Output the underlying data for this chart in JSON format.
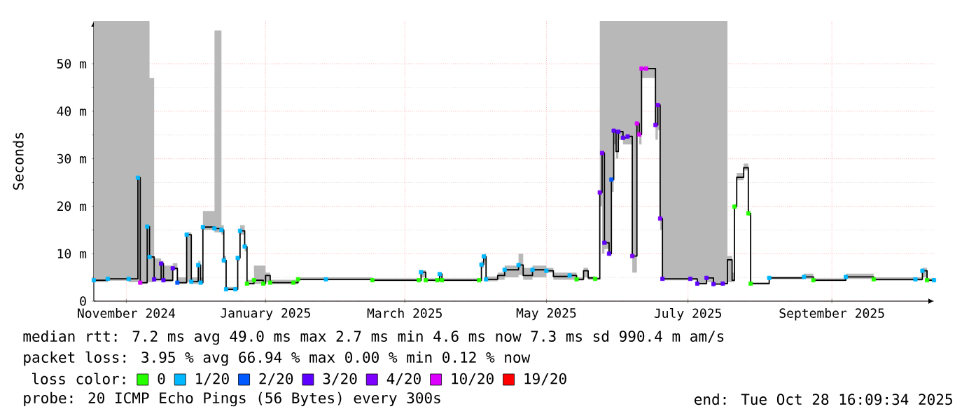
{
  "chart_data": {
    "type": "step",
    "ylabel": "Seconds",
    "legend_title": "loss color:",
    "legend": "bottom",
    "grid": true,
    "xlim": [
      "2024-10-31",
      "2025-10-28"
    ],
    "xticks": [
      {
        "value": "2024-11-14",
        "label": "November 2024"
      },
      {
        "value": "2025-01-13",
        "label": "January 2025"
      },
      {
        "value": "2025-03-14",
        "label": "March 2025"
      },
      {
        "value": "2025-05-14",
        "label": "May 2025"
      },
      {
        "value": "2025-07-14",
        "label": "July 2025"
      },
      {
        "value": "2025-09-14",
        "label": "September 2025"
      }
    ],
    "ylim": [
      0,
      59
    ],
    "yticks": [
      0,
      {
        "value": 10,
        "label": "10 m"
      },
      {
        "value": 20,
        "label": "20 m"
      },
      {
        "value": 30,
        "label": "30 m"
      },
      {
        "value": 40,
        "label": "40 m"
      },
      {
        "value": 50,
        "label": "50 m"
      }
    ],
    "annotations": [
      "median rtt:  7.2 ms avg  49.0 ms max  2.7 ms min  4.6 ms now  7.3 ms sd  990.4 m am/s",
      "packet loss: 3.95 % avg  66.94 % max  0.00 % min  0.12 % now",
      "probe:       20 ICMP Echo Pings (56 Bytes) every 300s",
      "end: Tue Oct 28 16:09:34 2025"
    ],
    "series": [
      {
        "color": "#000000",
        "x": [
          "2024-10-31",
          "2024-11-06",
          "2024-11-15",
          "2024-11-19",
          "2024-11-20",
          "2024-11-23",
          "2024-11-24",
          "2024-11-26",
          "2024-11-29",
          "2024-11-30",
          "2024-12-04",
          "2024-12-06",
          "2024-12-10",
          "2024-12-12",
          "2024-12-15",
          "2024-12-16",
          "2024-12-17",
          "2024-12-22",
          "2024-12-25",
          "2024-12-26",
          "2024-12-27",
          "2024-12-31",
          "2025-01-01",
          "2025-01-02",
          "2025-01-04",
          "2025-01-05",
          "2025-01-08",
          "2025-01-12",
          "2025-01-13",
          "2025-01-15",
          "2025-01-25",
          "2025-01-27",
          "2025-02-08",
          "2025-02-28",
          "2025-03-20",
          "2025-03-21",
          "2025-03-23",
          "2025-03-28",
          "2025-03-29",
          "2025-03-30",
          "2025-04-15",
          "2025-04-16",
          "2025-04-17",
          "2025-04-18",
          "2025-04-23",
          "2025-04-26",
          "2025-05-02",
          "2025-05-04",
          "2025-05-08",
          "2025-05-14",
          "2025-05-17",
          "2025-05-24",
          "2025-05-27",
          "2025-05-30",
          "2025-06-01",
          "2025-06-04",
          "2025-06-06",
          "2025-06-07",
          "2025-06-08",
          "2025-06-10",
          "2025-06-11",
          "2025-06-12",
          "2025-06-13",
          "2025-06-14",
          "2025-06-16",
          "2025-06-18",
          "2025-06-20",
          "2025-06-22",
          "2025-06-23",
          "2025-06-24",
          "2025-06-26",
          "2025-06-30",
          "2025-07-01",
          "2025-07-02",
          "2025-07-03",
          "2025-07-15",
          "2025-07-18",
          "2025-07-22",
          "2025-07-25",
          "2025-07-29",
          "2025-07-31",
          "2025-08-02",
          "2025-08-03",
          "2025-08-04",
          "2025-08-06",
          "2025-08-07",
          "2025-08-09",
          "2025-08-10",
          "2025-08-14",
          "2025-08-18",
          "2025-09-02",
          "2025-09-06",
          "2025-09-20",
          "2025-10-02",
          "2025-10-20",
          "2025-10-23",
          "2025-10-25",
          "2025-10-28"
        ],
        "values": [
          4.4,
          4.7,
          4.7,
          26,
          3.9,
          15.7,
          9.3,
          4.6,
          7.9,
          4.4,
          6.9,
          3.9,
          14,
          4.1,
          7.6,
          3.9,
          15.6,
          15.3,
          15,
          8.6,
          2.5,
          2.5,
          9.1,
          14.8,
          11.5,
          3.7,
          4.4,
          3.7,
          5.4,
          3.9,
          3.9,
          4.6,
          4.6,
          4.4,
          4.4,
          6.1,
          4.4,
          4.4,
          5.7,
          4.4,
          4.4,
          7.7,
          9.4,
          4.6,
          5.4,
          6.6,
          7.6,
          5.4,
          6.6,
          6.4,
          5.2,
          5.4,
          4.6,
          6.4,
          4.9,
          4.7,
          22.9,
          31.2,
          12.3,
          10,
          25.6,
          35.9,
          31.5,
          35.7,
          34.4,
          34.7,
          9.5,
          37.4,
          35.1,
          49,
          49,
          37.1,
          41.3,
          17.4,
          4.7,
          4.7,
          3.7,
          4.9,
          3.6,
          3.7,
          8.7,
          4.4,
          19.9,
          26.1,
          26.1,
          28.1,
          18.5,
          3.7,
          3.7,
          4.9,
          5.1,
          4.4,
          5.1,
          4.6,
          4.6,
          6.4,
          4.4,
          4.4
        ],
        "lower": [
          4,
          4.3,
          4,
          4,
          3.6,
          4,
          4,
          4.2,
          4.5,
          4,
          6.5,
          3.6,
          4,
          3.6,
          4,
          3.6,
          15,
          14.5,
          14,
          8,
          2.3,
          2.3,
          8.5,
          14,
          10.5,
          3.5,
          3.6,
          3.5,
          4,
          3.6,
          3.6,
          4.4,
          4.4,
          4.2,
          4.2,
          5,
          4.2,
          4.2,
          5,
          4.2,
          4.2,
          7,
          8.5,
          4.2,
          4.5,
          5,
          5.5,
          4.5,
          5,
          6,
          4.5,
          4.5,
          4.3,
          5,
          4.5,
          4.6,
          20,
          10,
          11,
          9.5,
          23,
          33,
          30,
          34,
          33,
          33,
          6,
          35,
          33,
          47,
          47,
          34,
          36,
          15,
          4.4,
          4.4,
          3.5,
          4,
          3.5,
          3.5,
          4,
          4,
          19.5,
          25.5,
          25.5,
          27.5,
          18,
          3.5,
          3.5,
          4.6,
          4.7,
          4.2,
          4.7,
          4.3,
          4.3,
          5,
          4.2,
          4.2
        ],
        "upper": [
          59,
          59,
          59,
          59,
          59,
          59,
          47,
          9,
          8.5,
          7.5,
          8,
          5,
          14.5,
          5,
          8.5,
          5,
          19,
          57,
          16,
          9.5,
          3,
          3,
          9.5,
          16,
          12,
          4.5,
          7.5,
          7.5,
          6,
          4.5,
          4.5,
          5,
          5,
          4.8,
          4.8,
          6.5,
          4.8,
          4.8,
          6,
          4.8,
          4.8,
          8.5,
          10,
          5.2,
          6,
          7.5,
          10,
          7,
          7.5,
          7,
          6,
          6,
          5,
          7,
          5.2,
          5,
          59,
          59,
          59,
          59,
          59,
          59,
          59,
          59,
          59,
          59,
          59,
          59,
          59,
          59,
          59,
          59,
          59,
          59,
          59,
          59,
          59,
          59,
          59,
          59,
          9.5,
          6,
          20.5,
          27,
          27,
          29,
          19,
          4,
          4,
          5.2,
          5.8,
          4.8,
          5.8,
          5,
          5,
          7,
          4.8,
          4.8
        ]
      },
      {
        "type": "scatter",
        "name": "0",
        "color": "#26ff00",
        "marker": "square",
        "x": [
          "2025-01-05",
          "2025-01-08",
          "2025-01-12",
          "2025-01-15",
          "2025-01-25",
          "2025-01-27",
          "2025-02-28",
          "2025-03-20",
          "2025-03-23",
          "2025-03-28",
          "2025-03-30",
          "2025-04-15",
          "2025-05-27",
          "2025-06-04",
          "2025-08-03",
          "2025-08-09",
          "2025-08-10",
          "2025-09-06",
          "2025-10-02",
          "2025-10-25"
        ],
        "values": [
          3.7,
          4.4,
          3.7,
          3.9,
          3.9,
          4.6,
          4.4,
          4.4,
          4.4,
          4.4,
          4.4,
          4.4,
          4.6,
          4.7,
          19.9,
          18.5,
          3.7,
          4.4,
          4.6,
          4.4
        ]
      },
      {
        "type": "scatter",
        "name": "1/20",
        "color": "#00b8ff",
        "marker": "square",
        "x": [
          "2024-10-31",
          "2024-11-06",
          "2024-11-15",
          "2024-11-19",
          "2024-11-23",
          "2024-11-24",
          "2024-12-10",
          "2024-12-12",
          "2024-12-15",
          "2024-12-16",
          "2024-12-17",
          "2024-12-22",
          "2024-12-25",
          "2024-12-26",
          "2024-12-27",
          "2024-12-31",
          "2025-01-01",
          "2025-01-02",
          "2025-01-04",
          "2025-02-08",
          "2025-03-21",
          "2025-03-29",
          "2025-04-16",
          "2025-04-17",
          "2025-04-18",
          "2025-04-26",
          "2025-05-02",
          "2025-05-08",
          "2025-05-14",
          "2025-05-24",
          "2025-08-18",
          "2025-09-02",
          "2025-09-20",
          "2025-10-20",
          "2025-10-23",
          "2025-10-28"
        ],
        "values": [
          4.4,
          4.7,
          4.7,
          26,
          15.7,
          9.3,
          14,
          4.1,
          7.6,
          3.9,
          15.6,
          15.3,
          15,
          8.6,
          2.5,
          2.5,
          9.1,
          14.8,
          11.5,
          4.6,
          6.1,
          5.7,
          7.7,
          9.4,
          4.6,
          6.6,
          7.6,
          6.6,
          6.4,
          5.4,
          4.9,
          5.1,
          5.1,
          4.6,
          6.4,
          4.4
        ]
      },
      {
        "type": "scatter",
        "name": "2/20",
        "color": "#0059ff",
        "marker": "square",
        "x": [
          "2024-12-06",
          "2025-06-11"
        ],
        "values": [
          3.9,
          25.6
        ]
      },
      {
        "type": "scatter",
        "name": "3/20",
        "color": "#5e00ff",
        "marker": "square",
        "x": [
          "2024-11-26",
          "2024-11-29",
          "2024-11-30",
          "2024-12-04",
          "2025-06-08",
          "2025-06-10",
          "2025-06-12",
          "2025-06-14",
          "2025-06-16",
          "2025-06-18",
          "2025-07-03",
          "2025-07-15",
          "2025-07-18",
          "2025-07-22",
          "2025-07-25",
          "2025-07-29"
        ],
        "values": [
          4.6,
          7.9,
          4.4,
          6.9,
          12.3,
          10,
          35.9,
          35.7,
          34.4,
          34.7,
          4.7,
          4.7,
          3.7,
          4.9,
          3.6,
          3.7
        ]
      },
      {
        "type": "scatter",
        "name": "4/20",
        "color": "#7e00ff",
        "marker": "square",
        "x": [
          "2025-06-06",
          "2025-06-07",
          "2025-06-20",
          "2025-06-30",
          "2025-07-01",
          "2025-07-02"
        ],
        "values": [
          22.9,
          31.2,
          9.5,
          37.1,
          41.3,
          17.4
        ]
      },
      {
        "type": "scatter",
        "name": "10/20",
        "color": "#dd00ff",
        "marker": "square",
        "x": [
          "2024-11-20",
          "2025-06-22",
          "2025-06-23",
          "2025-06-24",
          "2025-06-26"
        ],
        "values": [
          3.9,
          37.4,
          35.1,
          49,
          49
        ]
      },
      {
        "type": "scatter",
        "name": "19/20",
        "color": "#ff0000",
        "marker": "square"
      }
    ]
  }
}
